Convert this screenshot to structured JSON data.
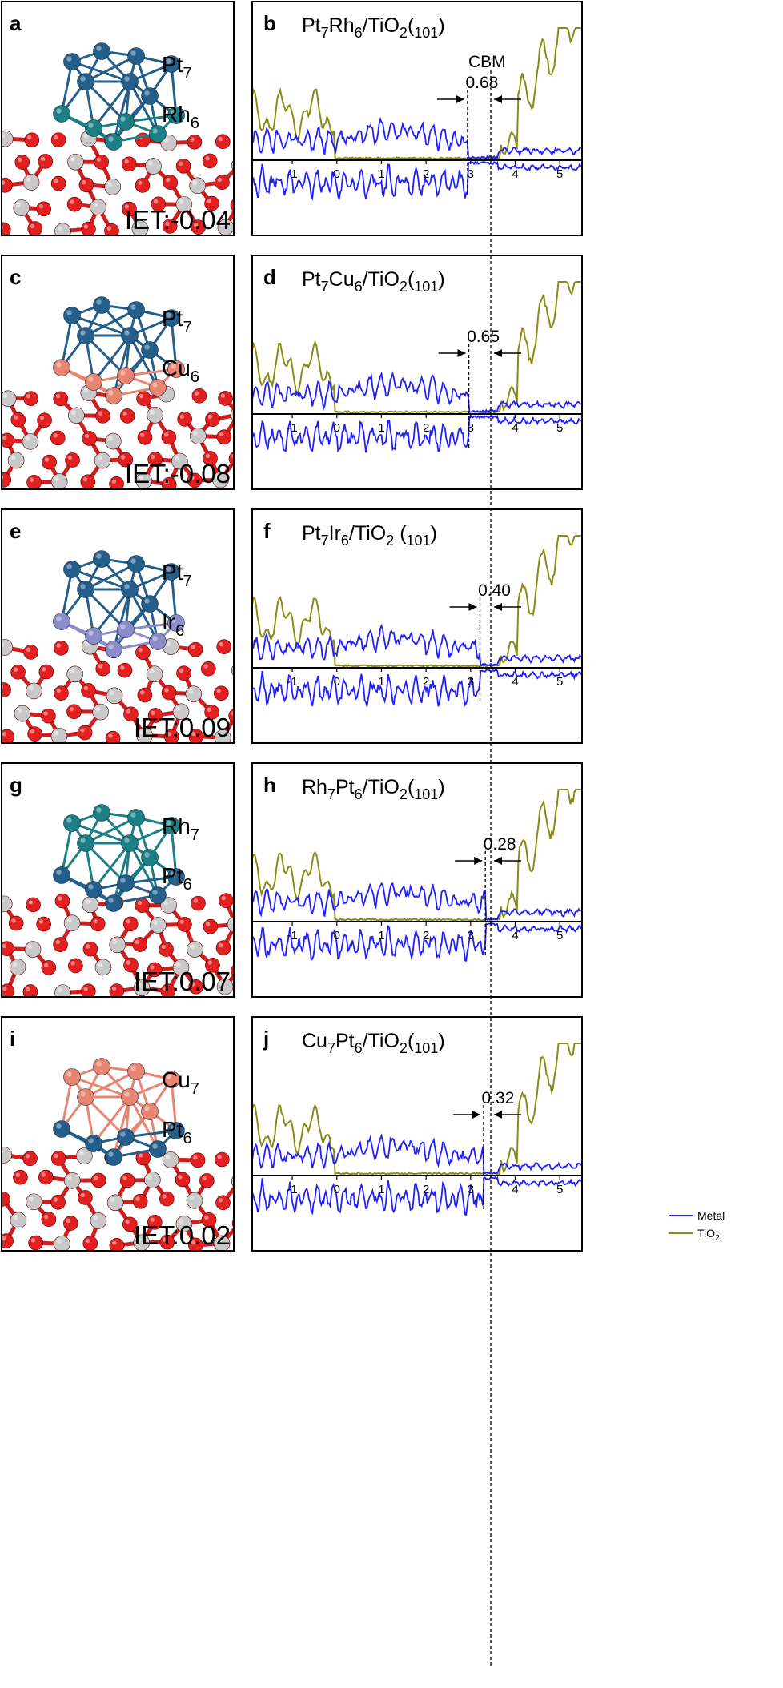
{
  "colors": {
    "metal": "#1f1fff",
    "tio2": "#8b8b14",
    "pt": "#245f8c",
    "rh": "#1c7f85",
    "cu": "#e88470",
    "ir": "#8c8ccb",
    "oxygen": "#e41f1f",
    "titanium": "#c9c9c9"
  },
  "legend": {
    "metal": "Metal",
    "tio2": "TiO2"
  },
  "cbm_label": "CBM",
  "structures": [
    {
      "panel": "a",
      "top_label": "Pt7",
      "bottom_label": "Rh6",
      "iet_label": "IET:-0.04",
      "top_color": "pt",
      "bottom_color": "rh"
    },
    {
      "panel": "c",
      "top_label": "Pt7",
      "bottom_label": "Cu6",
      "iet_label": "IET:-0.08",
      "top_color": "pt",
      "bottom_color": "cu"
    },
    {
      "panel": "e",
      "top_label": "Pt7",
      "bottom_label": "Ir6",
      "iet_label": "IET:0.09",
      "top_color": "pt",
      "bottom_color": "ir"
    },
    {
      "panel": "g",
      "top_label": "Rh7",
      "bottom_label": "Pt6",
      "iet_label": "IET:0.07",
      "top_color": "rh",
      "bottom_color": "pt"
    },
    {
      "panel": "i",
      "top_label": "Cu7",
      "bottom_label": "Pt6",
      "iet_label": "IET:0.02",
      "top_color": "cu",
      "bottom_color": "pt"
    }
  ],
  "chart_data": [
    {
      "panel": "b",
      "type": "line",
      "title": "Pt7Rh6/TiO2(101)",
      "gap_label": "0.68",
      "gap": 0.68,
      "xlim": [
        -1.9,
        5.5
      ],
      "xticks": [
        "-1",
        "0",
        "1",
        "2",
        "3",
        "4",
        "5"
      ],
      "metal_edge": 2.93,
      "cbm": 3.61,
      "series": [
        "Metal",
        "TiO2"
      ]
    },
    {
      "panel": "d",
      "type": "line",
      "title": "Pt7Cu6/TiO2(101)",
      "gap_label": "0.65",
      "gap": 0.65,
      "xlim": [
        -1.9,
        5.5
      ],
      "xticks": [
        "-1",
        "0",
        "1",
        "2",
        "3",
        "4",
        "5"
      ],
      "metal_edge": 2.96,
      "cbm": 3.61,
      "series": [
        "Metal",
        "TiO2"
      ]
    },
    {
      "panel": "f",
      "type": "line",
      "title": "Pt7Ir6/TiO2 (101)",
      "gap_label": "0.40",
      "gap": 0.4,
      "xlim": [
        -1.9,
        5.5
      ],
      "xticks": [
        "-1",
        "0",
        "1",
        "2",
        "3",
        "4",
        "5"
      ],
      "metal_edge": 3.21,
      "cbm": 3.61,
      "series": [
        "Metal",
        "TiO2"
      ]
    },
    {
      "panel": "h",
      "type": "line",
      "title": "Rh7Pt6/TiO2(101)",
      "gap_label": "0.28",
      "gap": 0.28,
      "xlim": [
        -1.9,
        5.5
      ],
      "xticks": [
        "-1",
        "0",
        "1",
        "2",
        "3",
        "4",
        "5"
      ],
      "metal_edge": 3.33,
      "cbm": 3.61,
      "series": [
        "Metal",
        "TiO2"
      ]
    },
    {
      "panel": "j",
      "type": "line",
      "title": "Cu7Pt6/TiO2(101)",
      "gap_label": "0.32",
      "gap": 0.32,
      "xlim": [
        -1.9,
        5.5
      ],
      "xticks": [
        "-1",
        "0",
        "1",
        "2",
        "3",
        "4",
        "5"
      ],
      "metal_edge": 3.29,
      "cbm": 3.61,
      "series": [
        "Metal",
        "TiO2"
      ]
    }
  ]
}
